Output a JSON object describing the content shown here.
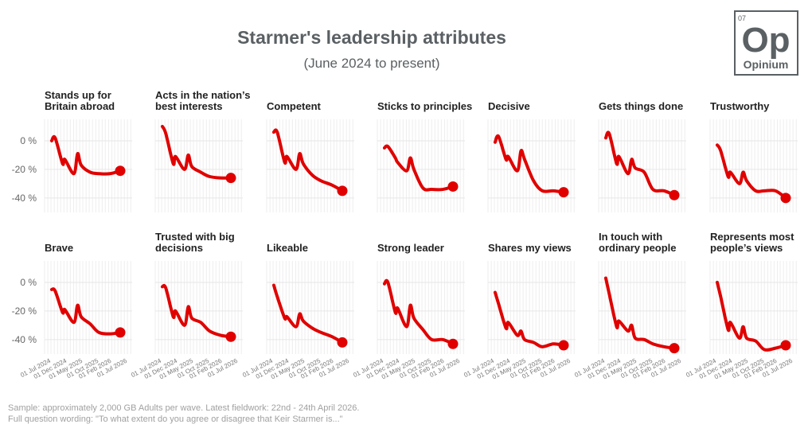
{
  "title": "Starmer's leadership attributes",
  "subtitle": "(June 2024 to present)",
  "footer": [
    "Sample: approximately 2,000 GB Adults per wave. Latest fieldwork: 22nd - 24th April 2026.",
    "Full question wording: \"To what extent do you agree or disagree that Keir Starmer is...\""
  ],
  "logo": {
    "number": "07",
    "symbol": "Op",
    "name": "Opinium"
  },
  "colors": {
    "line": "#e00000",
    "title": "#5a6063",
    "grid": "#e6e6e6"
  },
  "chart_data": {
    "type": "line",
    "layout": "small multiples, 2 rows x 7 columns, shared axes",
    "xlim": [
      "2024-05-01",
      "2026-08-15"
    ],
    "ylim": [
      -49,
      15
    ],
    "y_ticks": [
      0,
      -20,
      -40
    ],
    "y_tick_labels": [
      "0 %",
      "-20 %",
      "-40 %"
    ],
    "x_ticks": [
      "2024-07-01",
      "2024-12-01",
      "2025-05-01",
      "2025-10-01",
      "2026-02-01",
      "2026-07-01"
    ],
    "x_tick_labels": [
      "01 Jul 2024",
      "01 Dec 2024",
      "01 May 2025",
      "01 Oct 2025",
      "01 Feb 2026",
      "01 Jul 2026"
    ],
    "grid": true,
    "last_point_marker": true,
    "x": [
      "2024-07-08",
      "2024-08-10",
      "2024-10-20",
      "2024-11-10",
      "2025-02-05",
      "2025-03-12",
      "2025-04-15",
      "2025-07-10",
      "2025-10-01",
      "2026-01-15",
      "2026-04-23"
    ],
    "series": [
      {
        "name": [
          "Stands up for",
          "Britain abroad"
        ],
        "values": [
          0,
          2,
          -16,
          -13,
          -23,
          -9,
          -17,
          -22,
          -23,
          -23,
          -21
        ]
      },
      {
        "name": [
          "Acts in the nation’s",
          "best interests"
        ],
        "values": [
          10,
          5,
          -16,
          -11,
          -20,
          -10,
          -18,
          -22,
          -25,
          -26,
          -26
        ]
      },
      {
        "name": [
          "Competent"
        ],
        "values": [
          6,
          6,
          -15,
          -11,
          -20,
          -9,
          -16,
          -24,
          -28,
          -31,
          -35
        ]
      },
      {
        "name": [
          "Sticks to principles"
        ],
        "values": [
          -5,
          -4,
          -12,
          -15,
          -21,
          -12,
          -20,
          -33,
          -34,
          -34,
          -32
        ]
      },
      {
        "name": [
          "Decisive"
        ],
        "values": [
          -1,
          3,
          -13,
          -11,
          -21,
          -7,
          -13,
          -28,
          -35,
          -35,
          -36
        ]
      },
      {
        "name": [
          "Gets things done"
        ],
        "values": [
          2,
          5,
          -16,
          -11,
          -23,
          -13,
          -19,
          -22,
          -34,
          -35,
          -38
        ]
      },
      {
        "name": [
          "Trustworthy"
        ],
        "values": [
          -3,
          -7,
          -25,
          -22,
          -30,
          -22,
          -28,
          -35,
          -35,
          -35,
          -40
        ]
      },
      {
        "name": [
          "Brave"
        ],
        "values": [
          -5,
          -6,
          -21,
          -19,
          -28,
          -16,
          -24,
          -29,
          -35,
          -36,
          -35
        ]
      },
      {
        "name": [
          "Trusted with big",
          "decisions"
        ],
        "values": [
          -3,
          -4,
          -24,
          -20,
          -30,
          -17,
          -25,
          -28,
          -34,
          -37,
          -38
        ]
      },
      {
        "name": [
          "Likeable"
        ],
        "values": [
          -2,
          -10,
          -25,
          -24,
          -31,
          -22,
          -27,
          -32,
          -35,
          -38,
          -42
        ]
      },
      {
        "name": [
          "Strong leader"
        ],
        "values": [
          -1,
          0,
          -21,
          -18,
          -31,
          -16,
          -25,
          -33,
          -40,
          -40,
          -43
        ]
      },
      {
        "name": [
          "Shares my views"
        ],
        "values": [
          -7,
          -15,
          -32,
          -28,
          -37,
          -34,
          -40,
          -42,
          -45,
          -43,
          -44
        ]
      },
      {
        "name": [
          "In touch with",
          "ordinary people"
        ],
        "values": [
          3,
          -8,
          -31,
          -27,
          -34,
          -30,
          -39,
          -40,
          -43,
          -45,
          -46
        ]
      },
      {
        "name": [
          "Represents most",
          "people’s views"
        ],
        "values": [
          0,
          -10,
          -33,
          -28,
          -39,
          -31,
          -39,
          -41,
          -47,
          -46,
          -44
        ]
      }
    ]
  }
}
